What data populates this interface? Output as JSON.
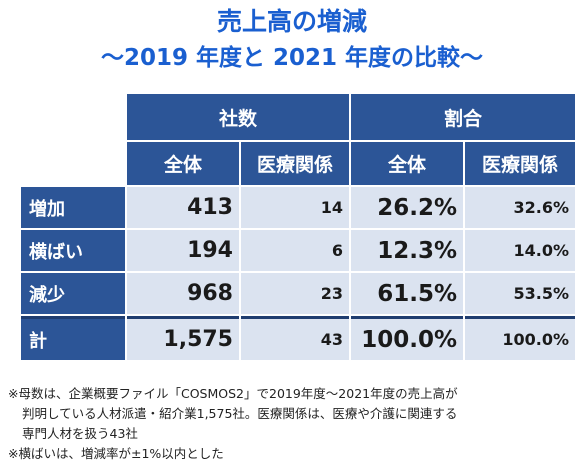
{
  "title": {
    "line1": "売上高の増減",
    "line2": "～2019 年度と 2021 年度の比較～"
  },
  "table": {
    "group_headers": [
      "社数",
      "割合"
    ],
    "sub_headers": [
      "全体",
      "医療関係",
      "全体",
      "医療関係"
    ],
    "rows": [
      {
        "label": "増加",
        "count_all": "413",
        "count_med": "14",
        "pct_all": "26.2%",
        "pct_med": "32.6%"
      },
      {
        "label": "横ばい",
        "count_all": "194",
        "count_med": "6",
        "pct_all": "12.3%",
        "pct_med": "14.0%"
      },
      {
        "label": "減少",
        "count_all": "968",
        "count_med": "23",
        "pct_all": "61.5%",
        "pct_med": "53.5%"
      },
      {
        "label": "計",
        "count_all": "1,575",
        "count_med": "43",
        "pct_all": "100.0%",
        "pct_med": "100.0%"
      }
    ]
  },
  "notes": {
    "note1_line1": "※母数は、企業概要ファイル「COSMOS2」で2019年度～2021年度の売上高が",
    "note1_line2": "判明している人材派遣・紹介業1,575社。医療関係は、医療や介護に関連する",
    "note1_line3": "専門人材を扱う43社",
    "note2": "※横ばいは、増減率が±1%以内とした"
  },
  "colors": {
    "title": "#1a5fd0",
    "header_bg": "#2c5597",
    "cell_bg": "#dbe3f0"
  }
}
